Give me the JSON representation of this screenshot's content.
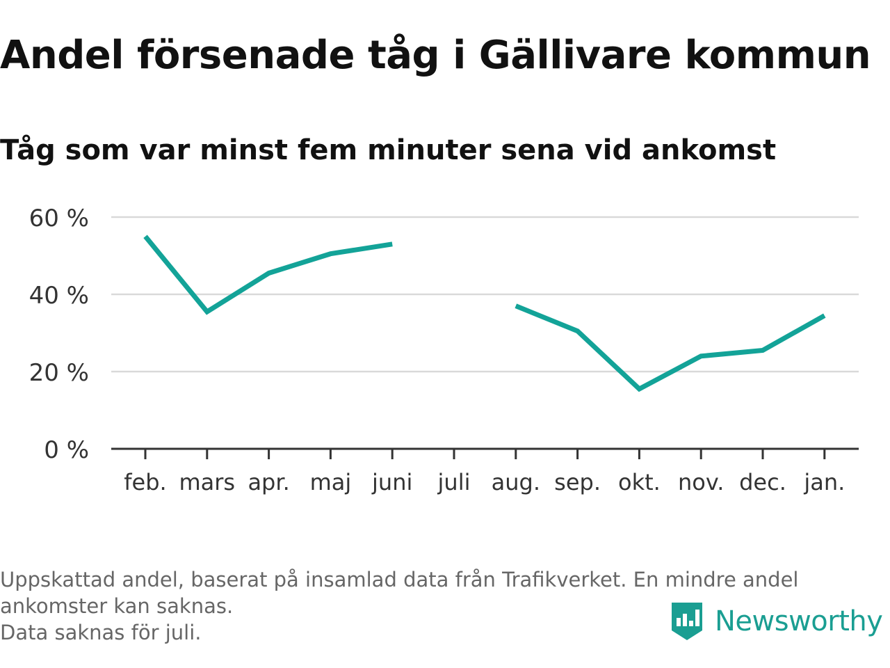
{
  "title": "Andel försenade tåg i Gällivare kommun",
  "subtitle": "Tåg som var minst fem minuter sena vid ankomst",
  "footnote": {
    "line1": "Uppskattad andel, baserat på insamlad data från Trafikverket. En mindre andel",
    "line2": "ankomster kan saknas.",
    "line3": "Data saknas för juli."
  },
  "brand": {
    "name": "Newsworthy",
    "icon": "newsworthy-logo-icon"
  },
  "colors": {
    "line": "#13a398",
    "grid": "#d9d9d9",
    "axis": "#333333",
    "text": "#111111",
    "muted": "#666666",
    "brand": "#1a9e92"
  },
  "chart_data": {
    "type": "line",
    "categories": [
      "feb.",
      "mars",
      "apr.",
      "maj",
      "juni",
      "juli",
      "aug.",
      "sep.",
      "okt.",
      "nov.",
      "dec.",
      "jan."
    ],
    "series": [
      {
        "values": [
          55,
          35.5,
          45.5,
          50.5,
          53,
          null,
          37,
          30.5,
          15.5,
          24,
          25.5,
          34.5
        ]
      }
    ],
    "yticks": [
      0,
      20,
      40,
      60
    ],
    "ytick_labels": [
      "0 %",
      "20 %",
      "40 %",
      "60 %"
    ],
    "ylim": [
      0,
      60
    ],
    "grid": true,
    "legend": "none"
  }
}
